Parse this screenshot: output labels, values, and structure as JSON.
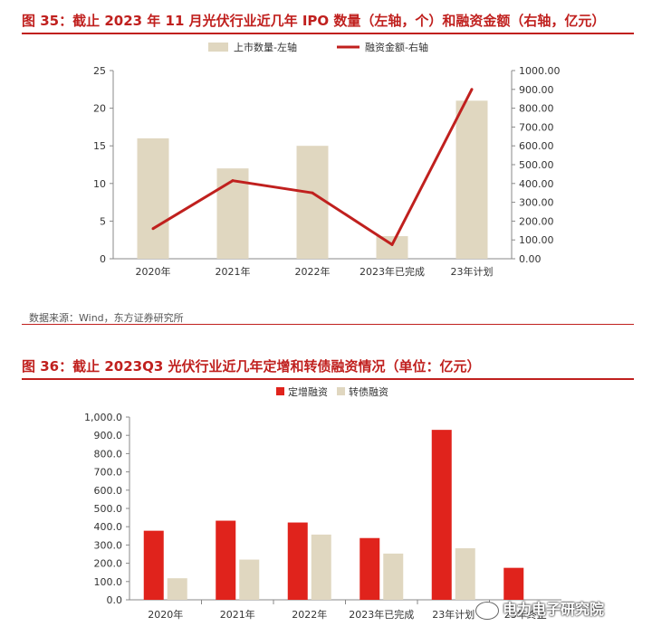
{
  "chart_data": [
    {
      "type": "bar+line",
      "title": "图 35：截止 2023 年 11 月光伏行业近几年 IPO 数量（左轴，个）和融资金额（右轴，亿元）",
      "categories": [
        "2020年",
        "2021年",
        "2022年",
        "2023年已完成",
        "23年计划"
      ],
      "series": [
        {
          "name": "上市数量-左轴",
          "type": "bar",
          "axis": "left",
          "color": "#e0d7c0",
          "values": [
            16,
            12,
            15,
            3,
            21
          ]
        },
        {
          "name": "融资金额-右轴",
          "type": "line",
          "axis": "right",
          "color": "#c0201e",
          "values": [
            160,
            415,
            350,
            75,
            900
          ]
        }
      ],
      "left_axis": {
        "ylim": [
          0,
          25
        ],
        "ticks": [
          "0",
          "5",
          "10",
          "15",
          "20",
          "25"
        ]
      },
      "right_axis": {
        "ylim": [
          0,
          1000
        ],
        "ticks": [
          "0.00",
          "100.00",
          "200.00",
          "300.00",
          "400.00",
          "500.00",
          "600.00",
          "700.00",
          "800.00",
          "900.00",
          "1000.00"
        ]
      },
      "legend_position": "top",
      "grid": false,
      "source": "数据来源：Wind，东方证券研究所"
    },
    {
      "type": "bar",
      "title": "图 36：截止 2023Q3 光伏行业近几年定增和转债融资情况（单位：亿元）",
      "categories": [
        "2020年",
        "2021年",
        "2022年",
        "2023年已完成",
        "23年计划",
        "23年终止"
      ],
      "series": [
        {
          "name": "定增融资",
          "color": "#e0231c",
          "values": [
            378,
            433,
            423,
            338,
            930,
            175
          ]
        },
        {
          "name": "转债融资",
          "color": "#e0d7c0",
          "values": [
            118,
            220,
            357,
            253,
            282,
            0
          ]
        }
      ],
      "ylim": [
        0,
        1000
      ],
      "ticks": [
        "0.0",
        "100.0",
        "200.0",
        "300.0",
        "400.0",
        "500.0",
        "600.0",
        "700.0",
        "800.0",
        "900.0",
        "1,000.0"
      ],
      "legend_position": "top",
      "grid": false
    }
  ],
  "watermark": "电力电子研究院",
  "watermark_icon": "wechat-icon"
}
